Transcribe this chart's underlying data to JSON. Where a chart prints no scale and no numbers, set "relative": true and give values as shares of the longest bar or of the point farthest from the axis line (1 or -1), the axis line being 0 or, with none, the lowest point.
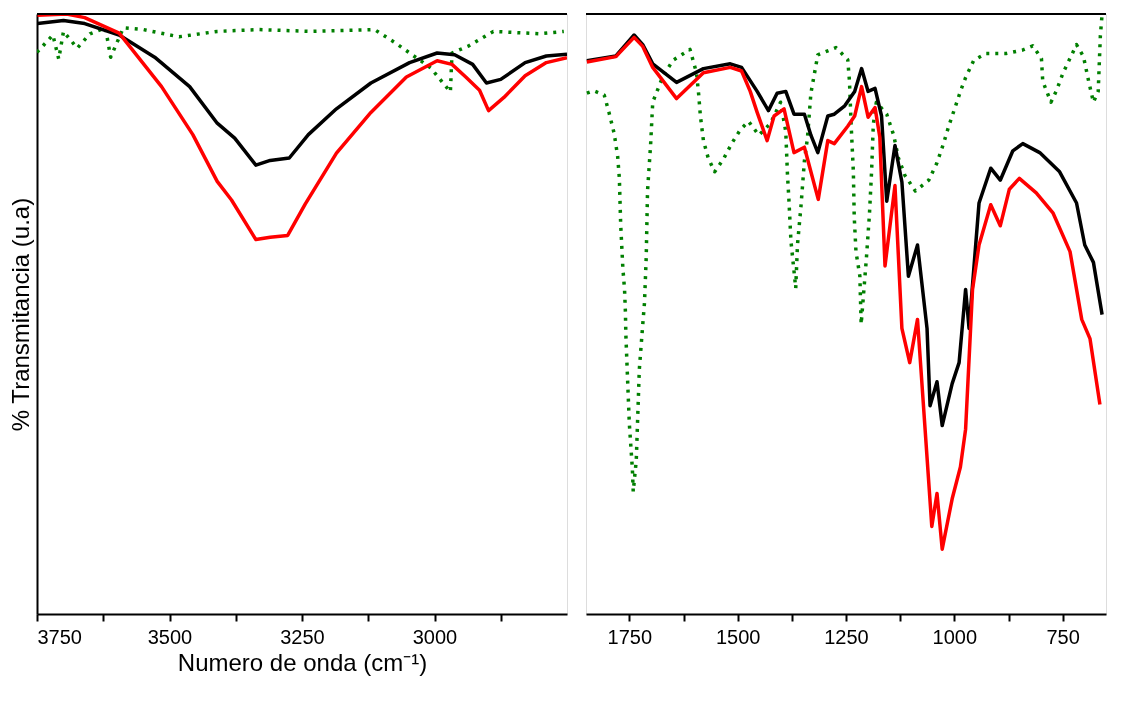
{
  "chart_data": [
    {
      "type": "line",
      "relative": true,
      "xlabel": "Numero de onda (cm⁻¹)",
      "ylabel": "% Transmitancia (u.a)",
      "xlim": [
        3750,
        2750
      ],
      "xticks": [
        3750,
        {
          "value": 3625,
          "label": null
        },
        3500,
        {
          "value": 3375,
          "label": null
        },
        3250,
        {
          "value": 3125,
          "label": null
        },
        3000,
        {
          "value": 2875,
          "label": null
        }
      ],
      "line_style": "solid",
      "marker": "none",
      "grid": false,
      "series": [
        {
          "color": "#007f00",
          "line_style": "dotted",
          "x": [
            3750,
            3720,
            3709,
            3700,
            3674,
            3650,
            3621,
            3611,
            3587,
            3549,
            3482,
            3410,
            3331,
            3231,
            3113,
            3074,
            3007,
            2970,
            2967,
            2935,
            2889,
            2802,
            2756
          ],
          "values": [
            0.936,
            0.965,
            0.925,
            0.971,
            0.943,
            0.967,
            0.977,
            0.928,
            0.977,
            0.974,
            0.962,
            0.971,
            0.974,
            0.971,
            0.974,
            0.952,
            0.91,
            0.87,
            0.935,
            0.947,
            0.971,
            0.967,
            0.971
          ]
        },
        {
          "color": "#000000",
          "x": [
            3749,
            3700,
            3660,
            3595,
            3528,
            3462,
            3410,
            3377,
            3337,
            3310,
            3274,
            3238,
            3185,
            3120,
            3047,
            2995,
            2962,
            2928,
            2902,
            2875,
            2829,
            2789,
            2750
          ],
          "values": [
            0.984,
            0.989,
            0.984,
            0.965,
            0.928,
            0.879,
            0.818,
            0.793,
            0.748,
            0.756,
            0.76,
            0.799,
            0.842,
            0.885,
            0.919,
            0.935,
            0.932,
            0.916,
            0.885,
            0.891,
            0.919,
            0.93,
            0.933
          ]
        },
        {
          "color": "#ff0000",
          "x": [
            3749,
            3694,
            3660,
            3595,
            3515,
            3456,
            3410,
            3383,
            3337,
            3310,
            3277,
            3244,
            3185,
            3120,
            3053,
            2995,
            2967,
            2941,
            2915,
            2898,
            2869,
            2829,
            2789,
            2750
          ],
          "values": [
            0.998,
            1.0,
            0.994,
            0.968,
            0.879,
            0.799,
            0.721,
            0.69,
            0.624,
            0.628,
            0.631,
            0.683,
            0.768,
            0.836,
            0.895,
            0.922,
            0.916,
            0.895,
            0.873,
            0.839,
            0.861,
            0.897,
            0.919,
            0.927
          ]
        }
      ]
    },
    {
      "type": "line",
      "relative": true,
      "xlim": [
        1850,
        650
      ],
      "tick_labels": "x",
      "xticks": [
        1750,
        {
          "value": 1625,
          "label": null
        },
        1500,
        {
          "value": 1375,
          "label": null
        },
        1250,
        {
          "value": 1125,
          "label": null
        },
        1000,
        {
          "value": 875,
          "label": null
        },
        750
      ],
      "line_style": "solid",
      "marker": "none",
      "grid": false,
      "series": [
        {
          "color": "#007f00",
          "line_style": "dotted",
          "x": [
            1848,
            1832,
            1808,
            1797,
            1785,
            1777,
            1773,
            1770,
            1765,
            1761,
            1759,
            1758,
            1754,
            1750,
            1743,
            1741,
            1734,
            1727,
            1719,
            1715,
            1711,
            1708,
            1701,
            1696,
            1672,
            1649,
            1610,
            1595,
            1590,
            1586,
            1579,
            1568,
            1553,
            1533,
            1513,
            1494,
            1475,
            1451,
            1424,
            1401,
            1389,
            1385,
            1382,
            1377,
            1366,
            1362,
            1354,
            1346,
            1339,
            1331,
            1315,
            1273,
            1246,
            1242,
            1238,
            1233,
            1231,
            1227,
            1218,
            1215,
            1203,
            1196,
            1191,
            1187,
            1180,
            1156,
            1140,
            1129,
            1114,
            1090,
            1059,
            1040,
            1025,
            1013,
            997,
            985,
            974,
            955,
            927,
            881,
            842,
            819,
            799,
            796,
            777,
            764,
            749,
            718,
            702,
            690,
            679,
            668,
            663,
            659
          ],
          "values": [
            0.868,
            0.872,
            0.865,
            0.836,
            0.801,
            0.763,
            0.726,
            0.65,
            0.577,
            0.54,
            0.502,
            0.465,
            0.39,
            0.317,
            0.242,
            0.204,
            0.256,
            0.407,
            0.483,
            0.519,
            0.595,
            0.705,
            0.781,
            0.853,
            0.897,
            0.923,
            0.941,
            0.902,
            0.866,
            0.83,
            0.789,
            0.76,
            0.737,
            0.758,
            0.785,
            0.807,
            0.821,
            0.798,
            0.818,
            0.853,
            0.804,
            0.731,
            0.694,
            0.621,
            0.543,
            0.615,
            0.679,
            0.755,
            0.793,
            0.868,
            0.932,
            0.944,
            0.924,
            0.888,
            0.813,
            0.737,
            0.662,
            0.604,
            0.563,
            0.483,
            0.592,
            0.665,
            0.737,
            0.816,
            0.853,
            0.833,
            0.798,
            0.76,
            0.731,
            0.705,
            0.723,
            0.752,
            0.784,
            0.813,
            0.847,
            0.873,
            0.894,
            0.923,
            0.934,
            0.934,
            0.94,
            0.947,
            0.926,
            0.888,
            0.853,
            0.873,
            0.902,
            0.949,
            0.929,
            0.888,
            0.853,
            0.871,
            0.964,
            1.0
          ]
        },
        {
          "color": "#000000",
          "x": [
            1848,
            1781,
            1739,
            1719,
            1696,
            1641,
            1579,
            1517,
            1491,
            1455,
            1429,
            1409,
            1389,
            1370,
            1346,
            1331,
            1315,
            1292,
            1277,
            1253,
            1230,
            1214,
            1199,
            1183,
            1168,
            1156,
            1137,
            1121,
            1106,
            1085,
            1063,
            1056,
            1040,
            1028,
            1005,
            989,
            974,
            966,
            943,
            916,
            894,
            865,
            842,
            803,
            757,
            718,
            699,
            679,
            659
          ],
          "values": [
            0.922,
            0.93,
            0.965,
            0.949,
            0.917,
            0.886,
            0.909,
            0.917,
            0.911,
            0.871,
            0.839,
            0.868,
            0.871,
            0.833,
            0.833,
            0.798,
            0.769,
            0.83,
            0.833,
            0.847,
            0.871,
            0.909,
            0.871,
            0.876,
            0.83,
            0.688,
            0.781,
            0.72,
            0.563,
            0.615,
            0.476,
            0.347,
            0.387,
            0.314,
            0.384,
            0.419,
            0.541,
            0.476,
            0.685,
            0.743,
            0.723,
            0.772,
            0.784,
            0.769,
            0.737,
            0.685,
            0.615,
            0.586,
            0.499
          ]
        },
        {
          "color": "#ff0000",
          "x": [
            1848,
            1781,
            1739,
            1719,
            1696,
            1641,
            1579,
            1517,
            1491,
            1471,
            1455,
            1432,
            1416,
            1393,
            1370,
            1346,
            1331,
            1314,
            1292,
            1277,
            1246,
            1230,
            1214,
            1199,
            1183,
            1172,
            1160,
            1137,
            1121,
            1103,
            1085,
            1052,
            1040,
            1028,
            1005,
            986,
            974,
            958,
            943,
            916,
            894,
            873,
            850,
            811,
            772,
            733,
            706,
            687,
            664
          ],
          "values": [
            0.92,
            0.929,
            0.961,
            0.946,
            0.911,
            0.859,
            0.902,
            0.911,
            0.905,
            0.871,
            0.836,
            0.789,
            0.83,
            0.842,
            0.769,
            0.778,
            0.737,
            0.691,
            0.789,
            0.784,
            0.813,
            0.83,
            0.879,
            0.828,
            0.844,
            0.795,
            0.58,
            0.714,
            0.476,
            0.419,
            0.491,
            0.146,
            0.201,
            0.108,
            0.192,
            0.245,
            0.308,
            0.541,
            0.615,
            0.682,
            0.647,
            0.708,
            0.726,
            0.702,
            0.668,
            0.604,
            0.491,
            0.459,
            0.349
          ]
        }
      ]
    }
  ]
}
